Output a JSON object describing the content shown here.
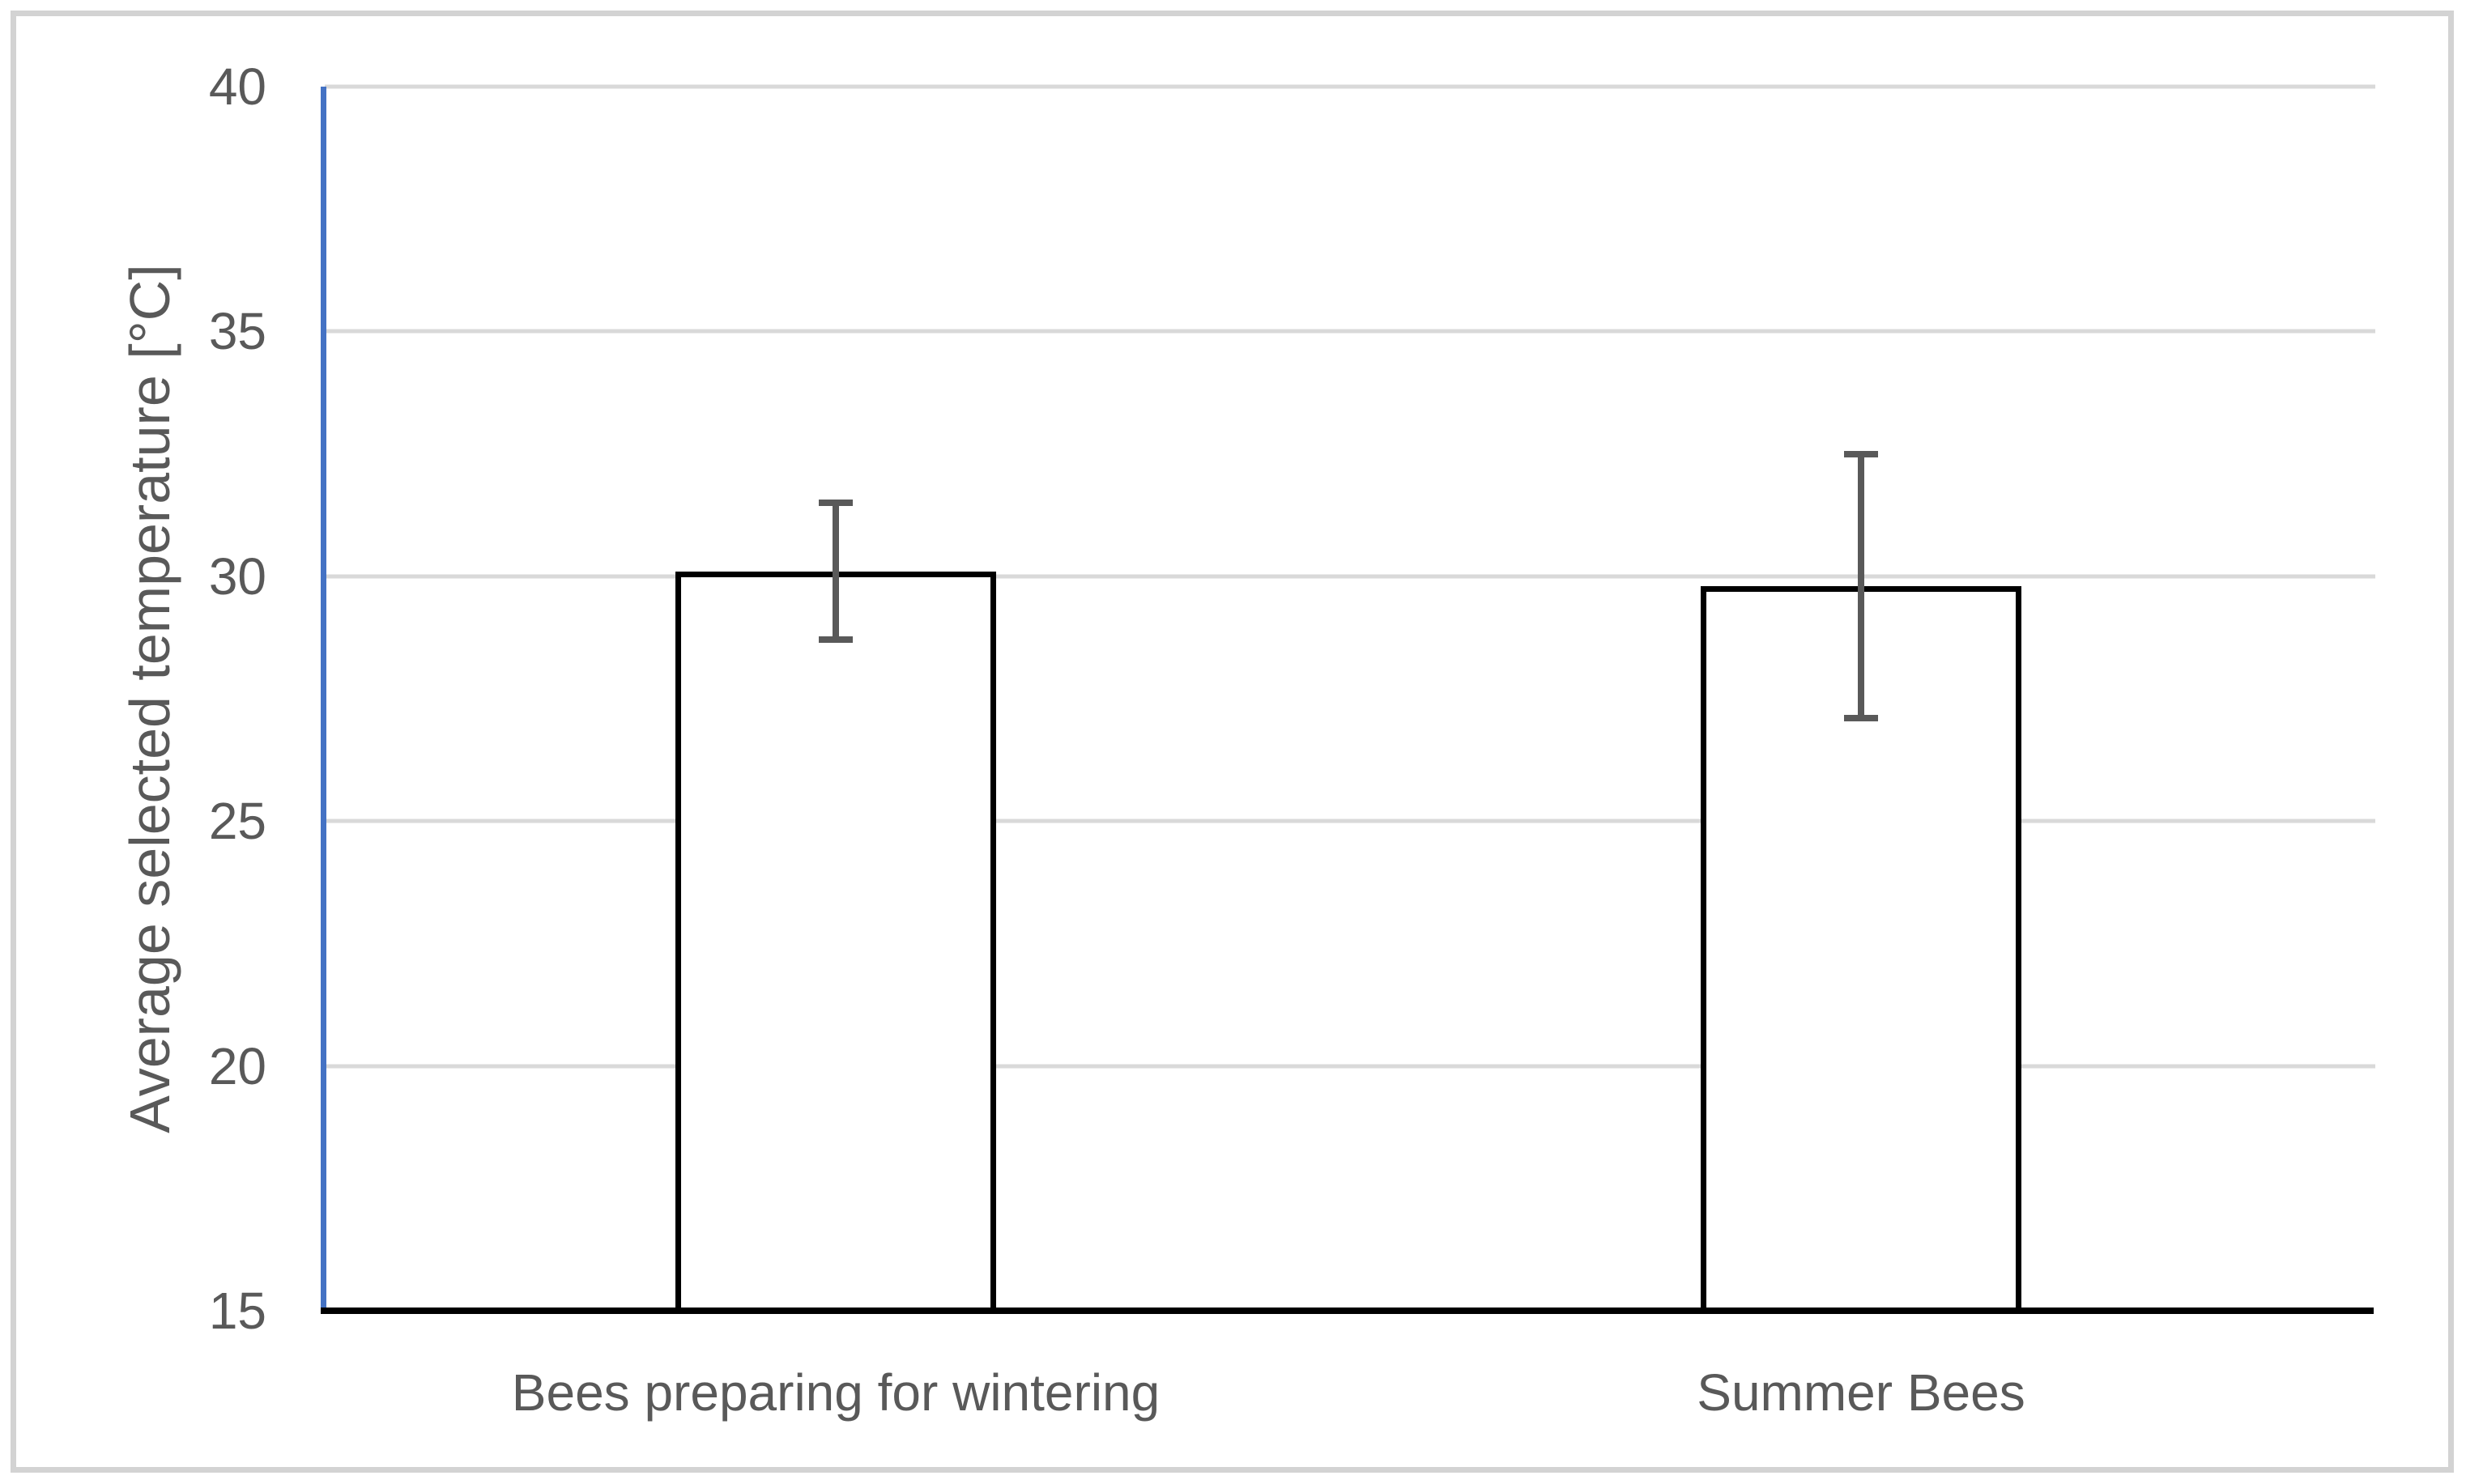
{
  "chart_data": {
    "type": "bar",
    "title": "",
    "xlabel": "",
    "ylabel": "Average selected temperature [°C]",
    "ylim": [
      15,
      40
    ],
    "ytick_step": 5,
    "ytick_labels": [
      "15",
      "20",
      "25",
      "30",
      "35",
      "40"
    ],
    "grid": true,
    "legend": false,
    "categories": [
      "Bees preparing for wintering",
      "Summer Bees"
    ],
    "values": [
      30.1,
      29.8
    ],
    "error_bars": [
      {
        "low": 28.7,
        "high": 31.5
      },
      {
        "low": 27.1,
        "high": 32.5
      }
    ],
    "bar_style": "white fill with black outline",
    "colors": {
      "axis_line": "#4472c4",
      "x_axis_line": "#000000",
      "bar_fill": "#ffffff",
      "bar_outline": "#000000",
      "error_bar": "#595959",
      "gridline": "#d9d9d9",
      "text": "#595959",
      "figure_border": "#d3d3d3"
    }
  }
}
